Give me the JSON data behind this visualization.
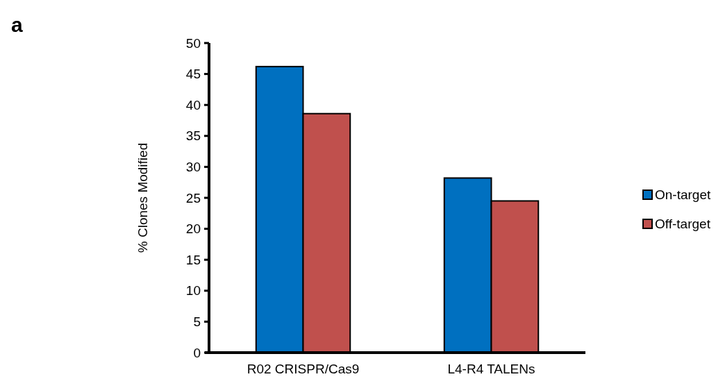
{
  "chart_data": {
    "type": "bar",
    "ylabel": "% Clones Modified",
    "annotations": [
      "a"
    ],
    "categories": [
      "R02 CRISPR/Cas9",
      "L4-R4 TALENs"
    ],
    "series": [
      {
        "name": "On-target",
        "color": "#0070c0",
        "values": [
          46.2,
          28.2
        ]
      },
      {
        "name": "Off-target",
        "color": "#c0504d",
        "values": [
          38.6,
          24.5
        ]
      }
    ],
    "ylim": [
      0,
      50
    ],
    "yticks": [
      0,
      5,
      10,
      15,
      20,
      25,
      30,
      35,
      40,
      45,
      50
    ],
    "legend": "right"
  }
}
